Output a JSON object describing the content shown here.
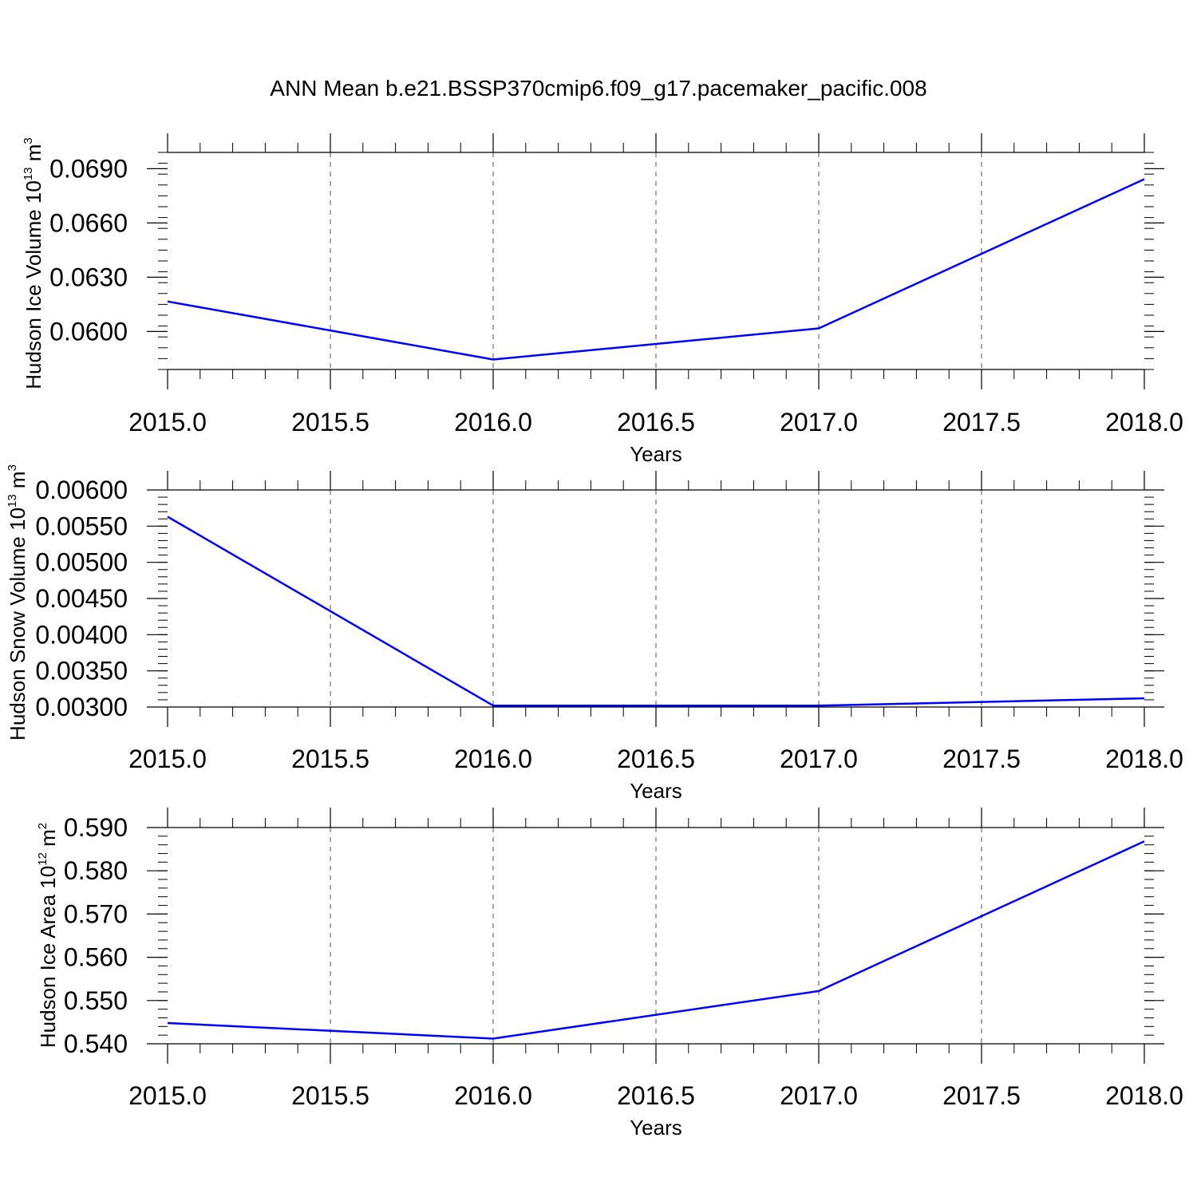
{
  "figure": {
    "title": "ANN Mean b.e21.BSSP370cmip6.f09_g17.pacemaker_pacific.008"
  },
  "chart_data": [
    {
      "type": "line",
      "ylabel": {
        "main": "Hudson Ice Volume 10",
        "exponent": "13",
        "unit_base": " m",
        "unit_exponent": "3"
      },
      "xlabel": "Years",
      "xlim": [
        2015.0,
        2018.0
      ],
      "ylim": [
        0.0579,
        0.0699
      ],
      "xticks": [
        "2015.0",
        "2015.5",
        "2016.0",
        "2016.5",
        "2017.0",
        "2017.5",
        "2018.0"
      ],
      "xtick_values": [
        2015.0,
        2015.5,
        2016.0,
        2016.5,
        2017.0,
        2017.5,
        2018.0
      ],
      "yticks": [
        "0.0600",
        "0.0630",
        "0.0660",
        "0.0690"
      ],
      "ytick_values": [
        0.06,
        0.063,
        0.066,
        0.069
      ],
      "grid": "vertical-dashed",
      "series": [
        {
          "color": "#0000ff",
          "x": [
            2015,
            2016,
            2017,
            2018
          ],
          "y": [
            0.06166,
            0.05845,
            0.06017,
            0.06842
          ]
        }
      ]
    },
    {
      "type": "line",
      "ylabel": {
        "main": "Hudson Snow Volume 10",
        "exponent": "13",
        "unit_base": " m",
        "unit_exponent": "3"
      },
      "xlabel": "Years",
      "xlim": [
        2015.0,
        2018.0
      ],
      "ylim": [
        0.003,
        0.006
      ],
      "xticks": [
        "2015.0",
        "2015.5",
        "2016.0",
        "2016.5",
        "2017.0",
        "2017.5",
        "2018.0"
      ],
      "xtick_values": [
        2015.0,
        2015.5,
        2016.0,
        2016.5,
        2017.0,
        2017.5,
        2018.0
      ],
      "yticks": [
        "0.00300",
        "0.00350",
        "0.00400",
        "0.00450",
        "0.00500",
        "0.00550",
        "0.00600"
      ],
      "ytick_values": [
        0.003,
        0.0035,
        0.004,
        0.0045,
        0.005,
        0.0055,
        0.006
      ],
      "grid": "vertical-dashed",
      "series": [
        {
          "color": "#0000ff",
          "x": [
            2015,
            2016,
            2017,
            2018
          ],
          "y": [
            0.00563,
            0.00302,
            0.00302,
            0.00312
          ]
        }
      ]
    },
    {
      "type": "line",
      "ylabel": {
        "main": "Hudson Ice Area 10",
        "exponent": "12",
        "unit_base": " m",
        "unit_exponent": "2"
      },
      "xlabel": "Years",
      "xlim": [
        2015.0,
        2018.0
      ],
      "ylim": [
        0.54,
        0.59
      ],
      "xticks": [
        "2015.0",
        "2015.5",
        "2016.0",
        "2016.5",
        "2017.0",
        "2017.5",
        "2018.0"
      ],
      "xtick_values": [
        2015.0,
        2015.5,
        2016.0,
        2016.5,
        2017.0,
        2017.5,
        2018.0
      ],
      "yticks": [
        "0.540",
        "0.550",
        "0.560",
        "0.570",
        "0.580",
        "0.590"
      ],
      "ytick_values": [
        0.54,
        0.55,
        0.56,
        0.57,
        0.58,
        0.59
      ],
      "grid": "vertical-dashed",
      "series": [
        {
          "color": "#0000ff",
          "x": [
            2015,
            2016,
            2017,
            2018
          ],
          "y": [
            0.5448,
            0.5412,
            0.5522,
            0.5868
          ]
        }
      ]
    }
  ]
}
